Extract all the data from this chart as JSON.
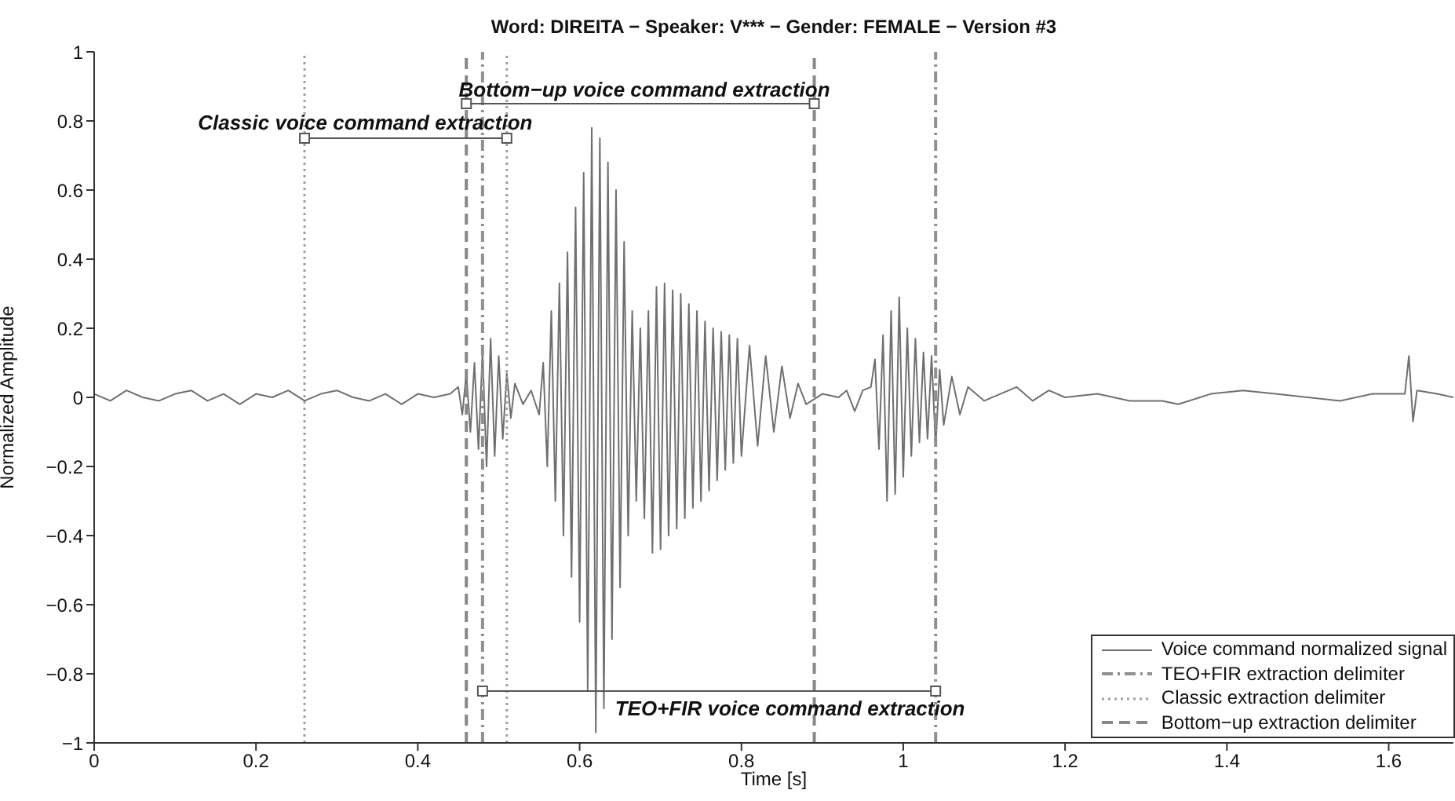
{
  "chart_data": {
    "type": "line",
    "title": "Word: DIREITA − Speaker: V*** − Gender: FEMALE − Version #3",
    "xlabel": "Time [s]",
    "ylabel": "Normalized Amplitude",
    "xlim": [
      0,
      1.68
    ],
    "xticks": [
      0,
      0.2,
      0.4,
      0.6,
      0.8,
      1,
      1.2,
      1.4,
      1.6
    ],
    "ylim": [
      -1,
      1
    ],
    "yticks": [
      {
        "value": -1,
        "label": "−1"
      },
      {
        "value": -0.8,
        "label": "−0.8"
      },
      {
        "value": -0.6,
        "label": "−0.6"
      },
      {
        "value": -0.4,
        "label": "−0.4"
      },
      {
        "value": -0.2,
        "label": "−0.2"
      },
      0,
      0.2,
      0.4,
      0.6,
      0.8,
      1
    ],
    "legend": "bottom right",
    "annotations": [
      "Classic voice command extraction",
      "Bottom−up voice command extraction",
      "TEO+FIR voice command extraction"
    ],
    "series": [
      {
        "name": "Voice command normalized signal",
        "color": "#707070",
        "line_style": "solid",
        "x": [
          0,
          0.02,
          0.04,
          0.06,
          0.08,
          0.1,
          0.12,
          0.14,
          0.16,
          0.18,
          0.2,
          0.22,
          0.24,
          0.26,
          0.28,
          0.3,
          0.32,
          0.34,
          0.36,
          0.38,
          0.4,
          0.42,
          0.44,
          0.45,
          0.455,
          0.46,
          0.465,
          0.47,
          0.475,
          0.48,
          0.485,
          0.49,
          0.495,
          0.5,
          0.505,
          0.51,
          0.515,
          0.52,
          0.53,
          0.54,
          0.55,
          0.555,
          0.56,
          0.565,
          0.57,
          0.575,
          0.58,
          0.585,
          0.59,
          0.595,
          0.6,
          0.605,
          0.61,
          0.615,
          0.62,
          0.625,
          0.63,
          0.635,
          0.64,
          0.645,
          0.65,
          0.655,
          0.66,
          0.665,
          0.67,
          0.675,
          0.68,
          0.685,
          0.69,
          0.695,
          0.7,
          0.705,
          0.71,
          0.715,
          0.72,
          0.725,
          0.73,
          0.735,
          0.74,
          0.745,
          0.75,
          0.755,
          0.76,
          0.765,
          0.77,
          0.775,
          0.78,
          0.785,
          0.79,
          0.795,
          0.8,
          0.81,
          0.82,
          0.83,
          0.84,
          0.85,
          0.86,
          0.87,
          0.88,
          0.9,
          0.92,
          0.93,
          0.94,
          0.95,
          0.96,
          0.965,
          0.97,
          0.975,
          0.98,
          0.985,
          0.99,
          0.995,
          1,
          1.005,
          1.01,
          1.015,
          1.02,
          1.025,
          1.03,
          1.035,
          1.04,
          1.045,
          1.05,
          1.06,
          1.07,
          1.08,
          1.1,
          1.12,
          1.14,
          1.16,
          1.18,
          1.2,
          1.24,
          1.28,
          1.32,
          1.34,
          1.38,
          1.42,
          1.46,
          1.5,
          1.54,
          1.58,
          1.62,
          1.625,
          1.63,
          1.635,
          1.66,
          1.68
        ],
        "values": [
          0.01,
          -0.01,
          0.02,
          0,
          -0.01,
          0.01,
          0.02,
          -0.01,
          0.01,
          -0.02,
          0.01,
          0,
          0.02,
          -0.01,
          0.01,
          0.02,
          0,
          -0.01,
          0.01,
          -0.02,
          0.01,
          0,
          0.01,
          0.03,
          -0.05,
          0.07,
          -0.1,
          0.1,
          -0.15,
          0.13,
          -0.2,
          0.17,
          -0.17,
          0.12,
          -0.12,
          0.07,
          -0.06,
          0.04,
          -0.02,
          0.02,
          -0.05,
          0.1,
          -0.2,
          0.25,
          -0.3,
          0.33,
          -0.4,
          0.42,
          -0.52,
          0.55,
          -0.65,
          0.65,
          -0.85,
          0.78,
          -0.97,
          0.75,
          -0.9,
          0.68,
          -0.7,
          0.6,
          -0.55,
          0.45,
          -0.4,
          0.25,
          -0.3,
          0.2,
          -0.35,
          0.25,
          -0.45,
          0.32,
          -0.44,
          0.33,
          -0.4,
          0.31,
          -0.38,
          0.3,
          -0.35,
          0.27,
          -0.32,
          0.25,
          -0.3,
          0.22,
          -0.27,
          0.2,
          -0.24,
          0.19,
          -0.21,
          0.18,
          -0.19,
          0.17,
          -0.17,
          0.15,
          -0.14,
          0.12,
          -0.1,
          0.09,
          -0.06,
          0.04,
          -0.02,
          0.01,
          0,
          0.02,
          -0.04,
          0.02,
          0.03,
          0.11,
          -0.15,
          0.18,
          -0.3,
          0.25,
          -0.28,
          0.29,
          -0.23,
          0.2,
          -0.17,
          0.17,
          -0.13,
          0.13,
          -0.12,
          0.12,
          -0.14,
          0.08,
          -0.08,
          0.06,
          -0.05,
          0.03,
          -0.01,
          0.01,
          0.03,
          -0.01,
          0.02,
          0,
          0.01,
          -0.01,
          -0.01,
          -0.02,
          0.01,
          0.02,
          0.01,
          0,
          -0.01,
          0.01,
          0.01,
          0.12,
          -0.07,
          0.02,
          0.01,
          0
        ]
      },
      {
        "name": "TEO+FIR extraction delimiter",
        "color": "#909090",
        "line_style": "dashdot",
        "x": [
          0.48,
          0.48
        ],
        "values": [
          -1,
          1
        ]
      },
      {
        "color": "#909090",
        "line_style": "dashdot",
        "x": [
          1.04,
          1.04
        ],
        "values": [
          -1,
          1
        ]
      },
      {
        "name": "Classic extraction delimiter",
        "color": "#a0a0a0",
        "line_style": "dotted",
        "x": [
          0.26,
          0.26
        ],
        "values": [
          -1,
          1
        ]
      },
      {
        "color": "#a0a0a0",
        "line_style": "dotted",
        "x": [
          0.51,
          0.51
        ],
        "values": [
          -1,
          1
        ]
      },
      {
        "name": "Bottom−up extraction delimiter",
        "color": "#888888",
        "line_style": "dashed",
        "x": [
          0.46,
          0.46
        ],
        "values": [
          -1,
          1
        ]
      },
      {
        "color": "#888888",
        "line_style": "dashed",
        "x": [
          0.89,
          0.89
        ],
        "values": [
          -1,
          1
        ]
      },
      {
        "color": "#555555",
        "line_style": "solid",
        "marker": "square",
        "x": [
          0.26,
          0.51
        ],
        "values": [
          0.75,
          0.75
        ]
      },
      {
        "color": "#555555",
        "line_style": "solid",
        "marker": "square",
        "x": [
          0.46,
          0.89
        ],
        "values": [
          0.85,
          0.85
        ]
      },
      {
        "color": "#555555",
        "line_style": "solid",
        "marker": "square",
        "x": [
          0.48,
          1.04
        ],
        "values": [
          -0.85,
          -0.85
        ]
      }
    ]
  }
}
